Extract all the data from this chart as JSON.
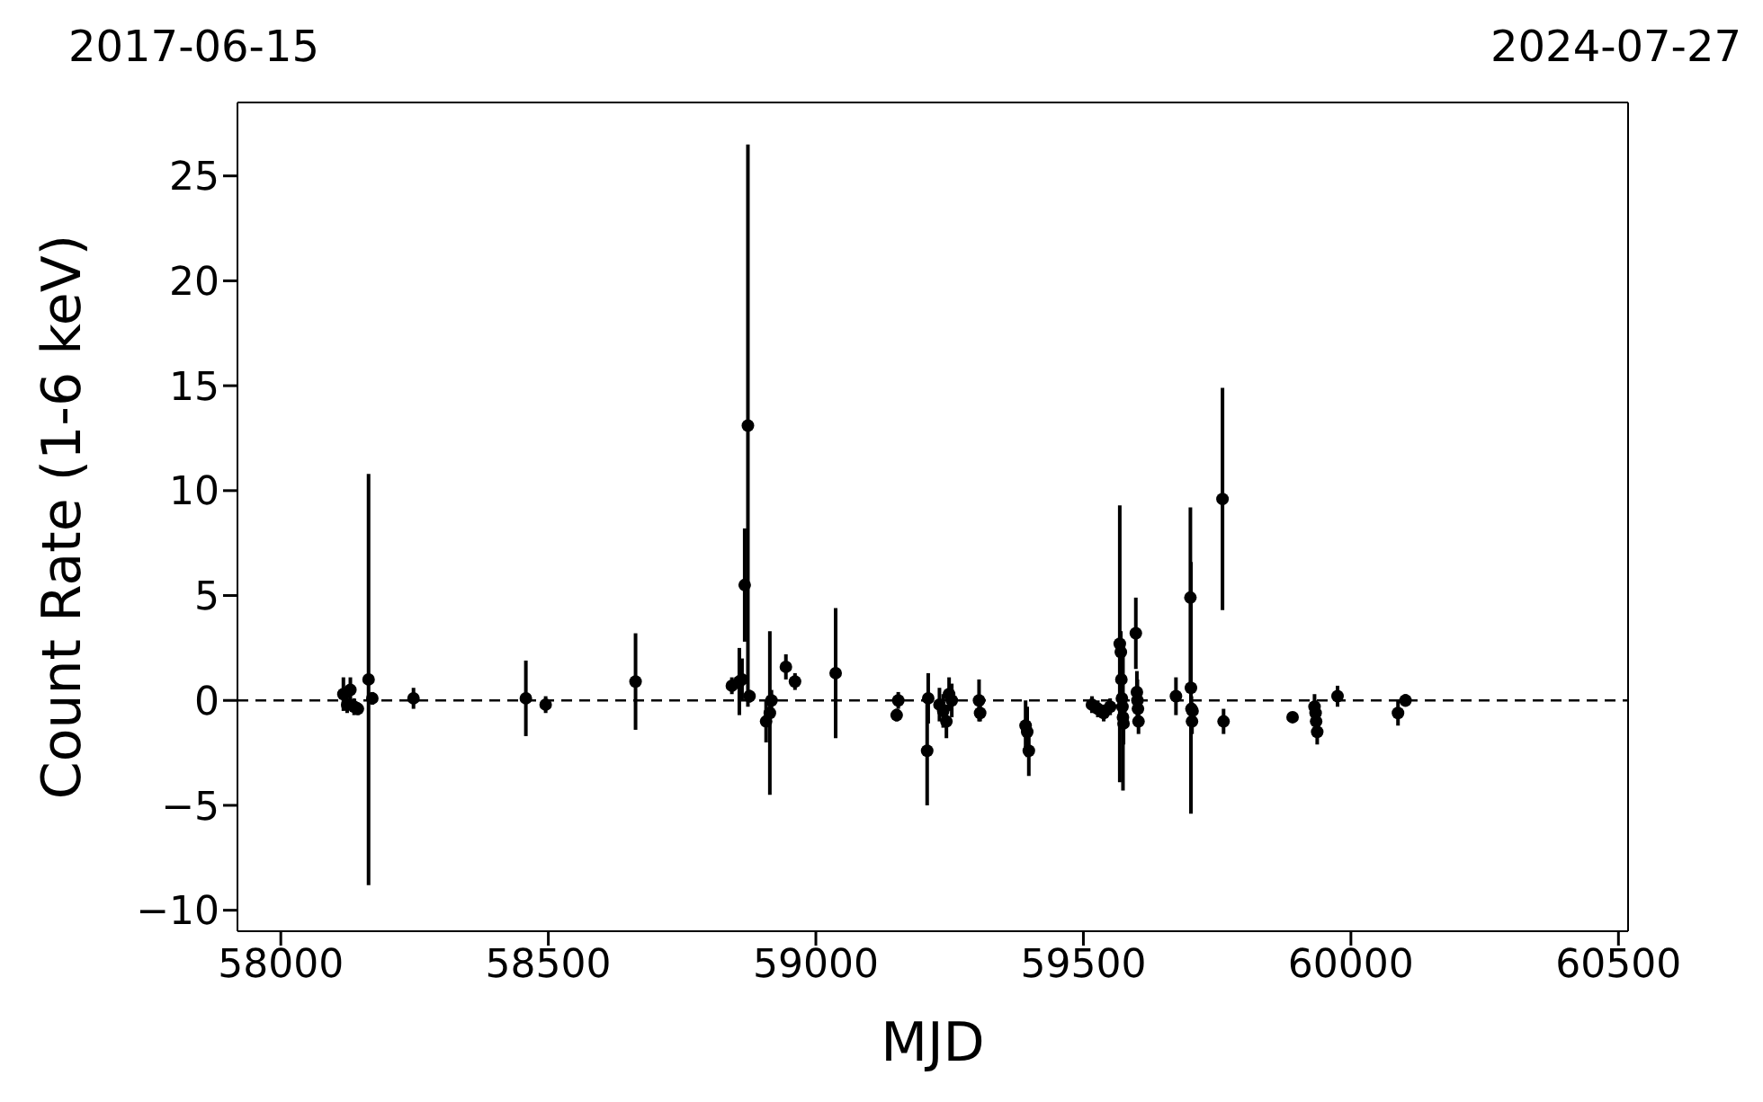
{
  "chart_data": {
    "type": "scatter",
    "xlabel": "MJD",
    "ylabel": "Count Rate (1-6 keV)",
    "xlim": [
      57919,
      60518
    ],
    "xticks": [
      58000,
      58500,
      59000,
      59500,
      60000,
      60500
    ],
    "annotations": [
      "2017-06-15",
      "2024-07-27"
    ],
    "ylim": [
      -11,
      28.5
    ],
    "yticks": [
      {
        "value": -10,
        "label": "−10"
      },
      {
        "value": -5,
        "label": "−5"
      },
      0,
      5,
      10,
      15,
      20,
      25
    ],
    "marker": "circle",
    "ref_lines": [
      {
        "axis": "y",
        "value": 0,
        "color": "#000000",
        "line_style": "dashed"
      }
    ],
    "series": [
      {
        "color": "#000000",
        "x": [
          58117,
          58124,
          58130,
          58137,
          58144,
          58164,
          58171,
          58248,
          58458,
          58495,
          58663,
          58843,
          58857,
          58862,
          58867,
          58873,
          58876,
          58907,
          58914,
          58917,
          58944,
          58961,
          59037,
          59151,
          59154,
          59208,
          59210,
          59231,
          59238,
          59244,
          59249,
          59254,
          59305,
          59307,
          59392,
          59395,
          59398,
          59516,
          59527,
          59538,
          59550,
          59568,
          59570,
          59571,
          59572,
          59573,
          59574,
          59575,
          59598,
          59600,
          59601,
          59602,
          59603,
          59673,
          59700,
          59701,
          59702,
          59703,
          59704,
          59760,
          59762,
          59891,
          59932,
          59934,
          59935,
          59937,
          59975,
          60088,
          60102
        ],
        "values": [
          0.3,
          -0.2,
          0.5,
          -0.3,
          -0.4,
          1.0,
          0.1,
          0.1,
          0.1,
          -0.2,
          0.9,
          0.7,
          0.9,
          1.0,
          5.5,
          13.1,
          0.2,
          -1.0,
          -0.6,
          0.0,
          1.6,
          0.9,
          1.3,
          -0.7,
          0.0,
          -2.4,
          0.1,
          -0.2,
          -0.5,
          -1.0,
          0.3,
          0.0,
          0.0,
          -0.6,
          -1.2,
          -1.5,
          -2.4,
          -0.2,
          -0.4,
          -0.6,
          -0.3,
          2.7,
          2.3,
          1.0,
          0.1,
          -0.3,
          -0.8,
          -1.1,
          3.2,
          0.4,
          0.0,
          -0.4,
          -1.0,
          0.2,
          4.9,
          0.6,
          -0.4,
          -1.0,
          -0.5,
          9.6,
          -1.0,
          -0.8,
          -0.3,
          -0.6,
          -1.0,
          -1.5,
          0.2,
          -0.6,
          0.0
        ],
        "errors": [
          0.8,
          0.4,
          0.6,
          0.4,
          0.3,
          9.8,
          0.3,
          0.5,
          1.8,
          0.4,
          2.3,
          0.4,
          1.6,
          1.0,
          2.7,
          13.4,
          0.3,
          1.0,
          3.9,
          0.5,
          0.6,
          0.4,
          3.1,
          0.3,
          0.4,
          2.6,
          1.2,
          0.8,
          0.8,
          0.8,
          0.8,
          0.8,
          1.0,
          0.4,
          1.2,
          1.2,
          1.2,
          0.4,
          0.4,
          0.4,
          0.4,
          6.6,
          1.0,
          1.0,
          1.0,
          1.0,
          3.5,
          1.0,
          1.7,
          1.0,
          1.0,
          0.6,
          0.6,
          0.9,
          4.3,
          6.0,
          0.6,
          0.6,
          0.3,
          5.3,
          0.6,
          0.2,
          0.6,
          0.6,
          0.6,
          0.6,
          0.5,
          0.6,
          0.3
        ]
      }
    ]
  }
}
